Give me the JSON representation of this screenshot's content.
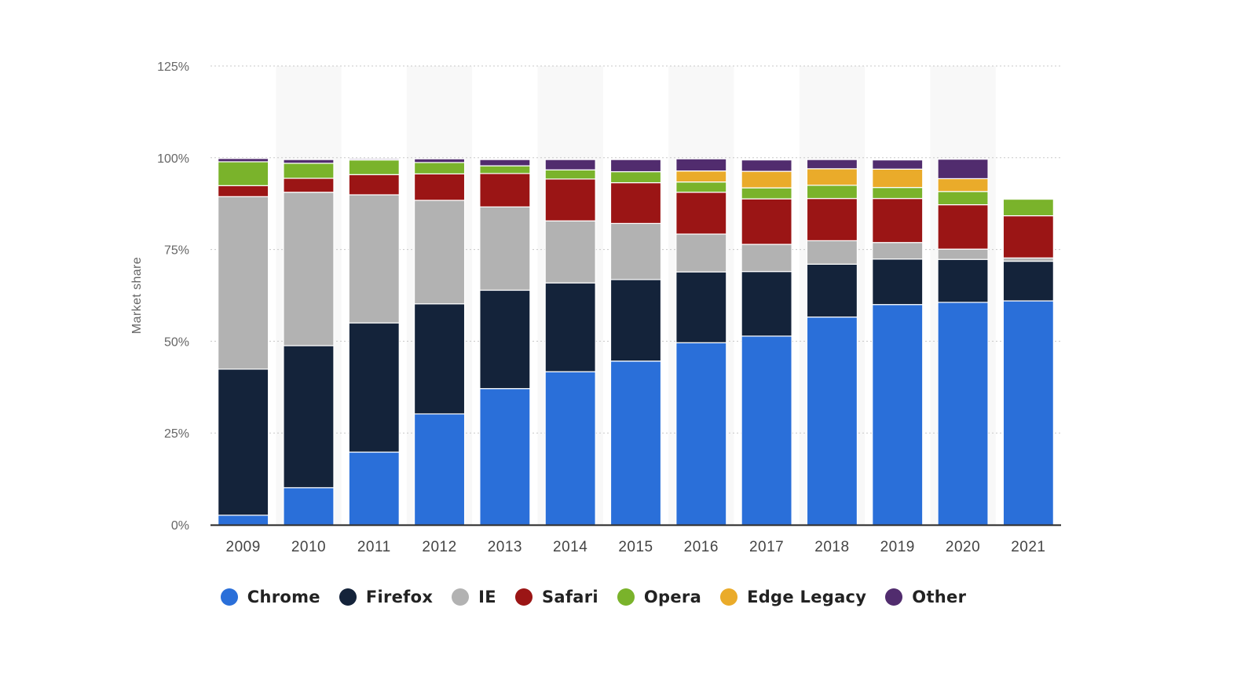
{
  "chart_data": {
    "type": "bar",
    "stacked": true,
    "title": "",
    "xlabel": "",
    "ylabel": "Market share",
    "ylim": [
      0,
      125
    ],
    "yticks": [
      "0%",
      "25%",
      "50%",
      "75%",
      "100%",
      "125%"
    ],
    "ytick_values": [
      0,
      25,
      50,
      75,
      100,
      125
    ],
    "grid": true,
    "legend_position": "bottom",
    "categories": [
      "2009",
      "2010",
      "2011",
      "2012",
      "2013",
      "2014",
      "2015",
      "2016",
      "2017",
      "2018",
      "2019",
      "2020",
      "2021"
    ],
    "series": [
      {
        "name": "Chrome",
        "color": "#2a6fd9",
        "values": [
          2.6,
          10.1,
          19.8,
          30.2,
          37.1,
          41.7,
          44.6,
          49.6,
          51.4,
          56.6,
          60.0,
          60.6,
          61.0
        ]
      },
      {
        "name": "Firefox",
        "color": "#14233a",
        "values": [
          39.8,
          38.7,
          35.2,
          30.0,
          26.8,
          24.2,
          22.2,
          19.3,
          17.6,
          14.4,
          12.4,
          11.7,
          10.8
        ]
      },
      {
        "name": "IE",
        "color": "#b2b2b2",
        "values": [
          47.0,
          41.8,
          34.9,
          28.2,
          22.7,
          16.9,
          15.3,
          10.3,
          7.4,
          6.4,
          4.5,
          2.8,
          0.9
        ]
      },
      {
        "name": "Safari",
        "color": "#9b1515",
        "values": [
          3.0,
          3.8,
          5.5,
          7.2,
          9.1,
          11.4,
          11.1,
          11.4,
          12.4,
          11.5,
          12.0,
          12.1,
          11.5
        ]
      },
      {
        "name": "Opera",
        "color": "#7ab32b",
        "values": [
          6.5,
          4.1,
          4.0,
          3.1,
          2.1,
          2.5,
          3.0,
          2.8,
          3.0,
          3.6,
          3.0,
          3.6,
          4.5
        ]
      },
      {
        "name": "Edge Legacy",
        "color": "#eaab2a",
        "values": [
          0,
          0,
          0,
          0,
          0,
          0,
          0,
          3.0,
          4.5,
          4.5,
          5.0,
          3.5,
          0
        ]
      },
      {
        "name": "Other",
        "color": "#512c6e",
        "values": [
          0.9,
          1.0,
          0.3,
          1.0,
          1.7,
          2.8,
          3.3,
          3.3,
          3.1,
          2.5,
          2.5,
          5.3,
          0
        ]
      }
    ]
  }
}
